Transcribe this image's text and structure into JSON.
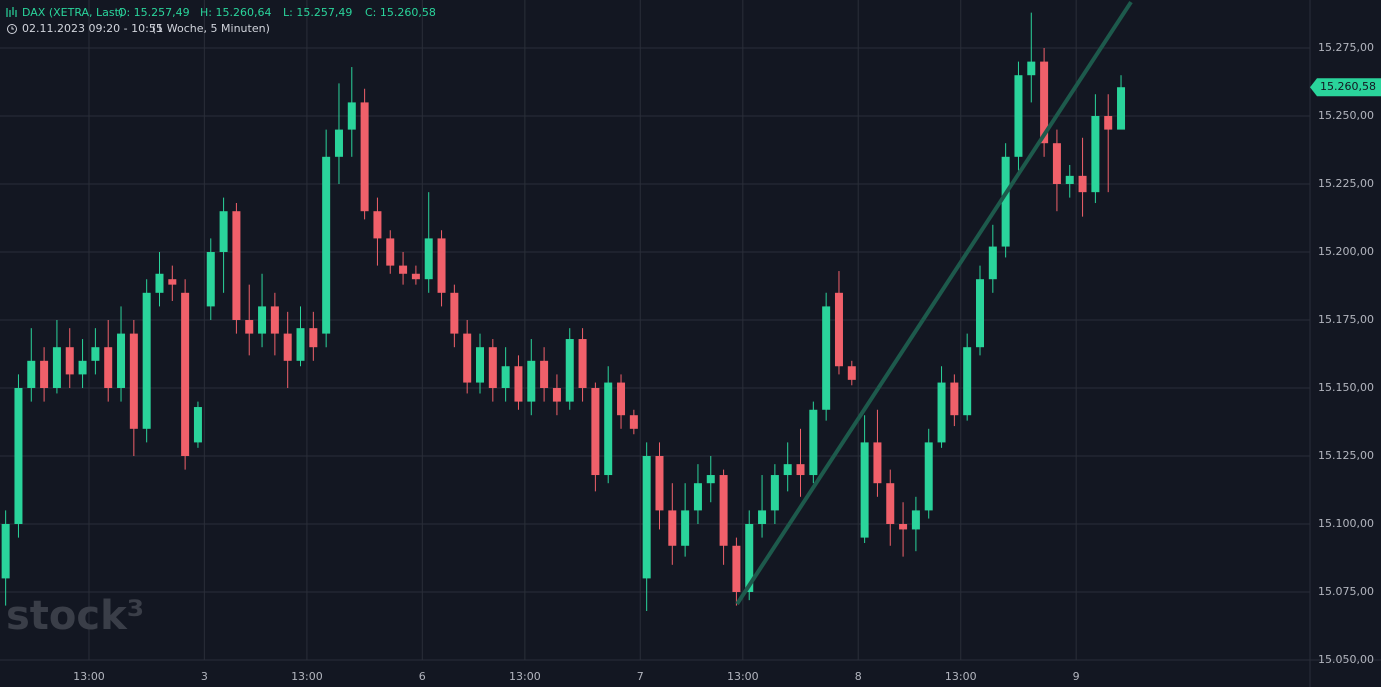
{
  "chart_data": {
    "type": "candlestick",
    "symbol": "DAX (XETRA, Last)",
    "ohlc_labels": [
      "O: 15.257,49",
      "H: 15.260,64",
      "L: 15.257,49",
      "C: 15.260,58"
    ],
    "range": "02.11.2023 09:20 - 10:55",
    "interval": "(1 Woche, 5 Minuten)",
    "watermark": "stock³",
    "up_color": "#2ad49b",
    "down_color": "#f0606a",
    "xlim": [
      1.06,
      103.24
    ],
    "xticks": [
      {
        "value": 8,
        "label": "13:00"
      },
      {
        "value": 17,
        "label": "3"
      },
      {
        "value": 25,
        "label": "13:00"
      },
      {
        "value": 34,
        "label": "6"
      },
      {
        "value": 42,
        "label": "13:00"
      },
      {
        "value": 51,
        "label": "7"
      },
      {
        "value": 59,
        "label": "13:00"
      },
      {
        "value": 68,
        "label": "8"
      },
      {
        "value": 76,
        "label": "13:00"
      },
      {
        "value": 85,
        "label": "9"
      }
    ],
    "ylim": [
      15050,
      15292.65
    ],
    "yticks": [
      {
        "value": 15050,
        "label": "15.050,00"
      },
      {
        "value": 15075,
        "label": "15.075,00"
      },
      {
        "value": 15100,
        "label": "15.100,00"
      },
      {
        "value": 15125,
        "label": "15.125,00"
      },
      {
        "value": 15150,
        "label": "15.150,00"
      },
      {
        "value": 15175,
        "label": "15.175,00"
      },
      {
        "value": 15200,
        "label": "15.200,00"
      },
      {
        "value": 15225,
        "label": "15.225,00"
      },
      {
        "value": 15250,
        "label": "15.250,00"
      },
      {
        "value": 15275,
        "label": "15.275,00"
      }
    ],
    "grid": true,
    "last_price": {
      "value": 15260.58,
      "label": "15.260,58"
    },
    "trendline": {
      "x": [
        58.55,
        89.28
      ],
      "y": [
        15070.6,
        15291.9
      ],
      "color": "#1d5a4c"
    },
    "x": [
      1.5,
      2.5,
      3.5,
      4.5,
      5.5,
      6.5,
      7.5,
      8.5,
      9.5,
      10.5,
      11.5,
      12.5,
      13.5,
      14.5,
      15.5,
      16.5,
      17.5,
      18.5,
      19.5,
      20.5,
      21.5,
      22.5,
      23.5,
      24.5,
      25.5,
      26.5,
      27.5,
      28.5,
      29.5,
      30.5,
      31.5,
      32.5,
      33.5,
      34.5,
      35.5,
      36.5,
      37.5,
      38.5,
      39.5,
      40.5,
      41.5,
      42.5,
      43.5,
      44.5,
      45.5,
      46.5,
      47.5,
      48.5,
      49.5,
      50.5,
      51.5,
      52.5,
      53.5,
      54.5,
      55.5,
      56.5,
      57.5,
      58.5,
      59.5,
      60.5,
      61.5,
      62.5,
      63.5,
      64.5,
      65.5,
      66.5,
      67.5,
      68.5,
      69.5,
      70.5,
      71.5,
      72.5,
      73.5,
      74.5,
      75.5,
      76.5,
      77.5,
      78.5,
      79.5,
      80.5,
      81.5,
      82.5,
      83.5,
      84.5,
      85.5,
      86.5,
      87.5,
      88.5
    ],
    "open": [
      15080,
      15100,
      15150,
      15160,
      15150,
      15165,
      15155,
      15160,
      15165,
      15150,
      15170,
      15135,
      15185,
      15190,
      15185,
      15130,
      15180,
      15200,
      15215,
      15175,
      15170,
      15180,
      15170,
      15160,
      15172,
      15170,
      15235,
      15245,
      15255,
      15215,
      15205,
      15195,
      15192,
      15190,
      15205,
      15185,
      15170,
      15152,
      15165,
      15150,
      15158,
      15145,
      15160,
      15150,
      15145,
      15168,
      15150,
      15118,
      15152,
      15140,
      15080,
      15125,
      15105,
      15092,
      15105,
      15115,
      15118,
      15092,
      15075,
      15100,
      15105,
      15118,
      15122,
      15118,
      15142,
      15185,
      15158,
      15095,
      15130,
      15115,
      15100,
      15098,
      15105,
      15130,
      15152,
      15140,
      15165,
      15190,
      15202,
      15235,
      15265,
      15270,
      15240,
      15225,
      15228,
      15222,
      15250,
      15245
    ],
    "high": [
      15105,
      15155,
      15172,
      15165,
      15175,
      15172,
      15168,
      15172,
      15175,
      15180,
      15175,
      15190,
      15200,
      15195,
      15190,
      15145,
      15205,
      15220,
      15218,
      15188,
      15192,
      15185,
      15178,
      15180,
      15178,
      15245,
      15262,
      15268,
      15260,
      15220,
      15208,
      15200,
      15195,
      15222,
      15208,
      15188,
      15175,
      15170,
      15168,
      15165,
      15162,
      15168,
      15165,
      15155,
      15172,
      15172,
      15152,
      15158,
      15155,
      15142,
      15130,
      15130,
      15115,
      15115,
      15122,
      15125,
      15120,
      15095,
      15105,
      15118,
      15122,
      15130,
      15135,
      15145,
      15185,
      15193,
      15160,
      15140,
      15142,
      15120,
      15108,
      15110,
      15135,
      15158,
      15155,
      15170,
      15195,
      15210,
      15240,
      15270,
      15288,
      15275,
      15245,
      15232,
      15242,
      15258,
      15258,
      15265
    ],
    "low": [
      15070,
      15095,
      15145,
      15145,
      15148,
      15150,
      15150,
      15155,
      15145,
      15145,
      15125,
      15130,
      15180,
      15182,
      15120,
      15128,
      15175,
      15185,
      15170,
      15162,
      15165,
      15162,
      15150,
      15158,
      15160,
      15165,
      15225,
      15235,
      15212,
      15195,
      15192,
      15188,
      15188,
      15185,
      15180,
      15165,
      15148,
      15148,
      15145,
      15145,
      15142,
      15140,
      15145,
      15140,
      15142,
      15145,
      15112,
      15115,
      15135,
      15133,
      15068,
      15098,
      15085,
      15088,
      15100,
      15108,
      15085,
      15070,
      15072,
      15095,
      15100,
      15112,
      15110,
      15115,
      15138,
      15155,
      15151,
      15093,
      15110,
      15092,
      15088,
      15090,
      15102,
      15128,
      15136,
      15138,
      15162,
      15185,
      15198,
      15230,
      15255,
      15235,
      15215,
      15220,
      15213,
      15218,
      15222,
      15247
    ],
    "close": [
      15100,
      15150,
      15160,
      15150,
      15165,
      15155,
      15160,
      15165,
      15150,
      15170,
      15135,
      15185,
      15192,
      15188,
      15125,
      15143,
      15200,
      15215,
      15175,
      15170,
      15180,
      15170,
      15160,
      15172,
      15165,
      15235,
      15245,
      15255,
      15215,
      15205,
      15195,
      15192,
      15190,
      15205,
      15185,
      15170,
      15152,
      15165,
      15150,
      15158,
      15145,
      15160,
      15150,
      15145,
      15168,
      15150,
      15118,
      15152,
      15140,
      15135,
      15125,
      15105,
      15092,
      15105,
      15115,
      15118,
      15092,
      15075,
      15100,
      15105,
      15118,
      15122,
      15118,
      15142,
      15180,
      15158,
      15153,
      15130,
      15115,
      15100,
      15098,
      15105,
      15130,
      15152,
      15140,
      15165,
      15190,
      15202,
      15235,
      15265,
      15270,
      15240,
      15225,
      15228,
      15222,
      15250,
      15245,
      15260.58
    ]
  }
}
